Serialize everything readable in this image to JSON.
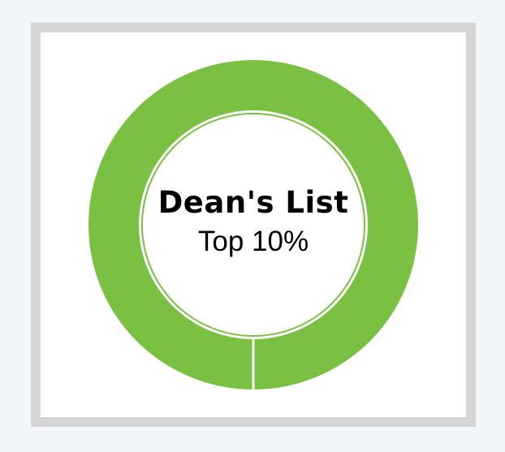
{
  "badge": {
    "title": "Dean's List",
    "subtitle": "Top 10%",
    "ring_color": "#7ac143",
    "ring_progress": 1.0
  },
  "colors": {
    "page_background": "#f3f6f9",
    "frame_border": "#d6d6d6",
    "panel_background": "#ffffff",
    "text": "#000000"
  }
}
